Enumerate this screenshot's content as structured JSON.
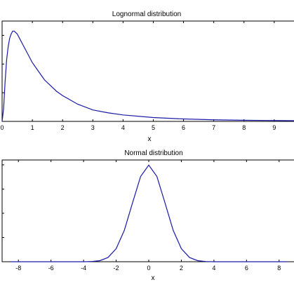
{
  "chart_data": [
    {
      "type": "line",
      "title": "Lognormal distribution",
      "xlabel": "x",
      "ylabel": "",
      "xlim": [
        0,
        9.7
      ],
      "ylim": [
        0,
        0.7
      ],
      "xticks": [
        "0",
        "1",
        "2",
        "3",
        "4",
        "5",
        "6",
        "7",
        "8",
        "9"
      ],
      "line_color": "#1a1aa8",
      "grid": false,
      "series": [
        {
          "x": [
            0,
            0.05,
            0.1,
            0.15,
            0.2,
            0.25,
            0.3,
            0.35,
            0.4,
            0.5,
            0.6,
            0.7,
            0.8,
            1.0,
            1.2,
            1.4,
            1.6,
            1.8,
            2.0,
            2.5,
            3.0,
            3.5,
            4.0,
            5.0,
            6.0,
            7.0,
            8.0,
            9.0,
            9.7
          ],
          "y": [
            0,
            0.09,
            0.28,
            0.43,
            0.52,
            0.58,
            0.61,
            0.63,
            0.63,
            0.61,
            0.57,
            0.53,
            0.49,
            0.41,
            0.35,
            0.29,
            0.25,
            0.21,
            0.18,
            0.12,
            0.08,
            0.06,
            0.045,
            0.027,
            0.017,
            0.011,
            0.008,
            0.006,
            0.005
          ]
        }
      ]
    },
    {
      "type": "line",
      "title": "Normal distribution",
      "xlabel": "x",
      "ylabel": "",
      "xlim": [
        -9,
        9
      ],
      "ylim": [
        0,
        0.42
      ],
      "xticks": [
        "-8",
        "-6",
        "-4",
        "-2",
        "0",
        "2",
        "4",
        "6",
        "8"
      ],
      "line_color": "#1a1aa8",
      "grid": false,
      "series": [
        {
          "x": [
            -8.5,
            -6,
            -4,
            -3.5,
            -3,
            -2.5,
            -2,
            -1.5,
            -1,
            -0.5,
            0,
            0.5,
            1,
            1.5,
            2,
            2.5,
            3,
            3.5,
            4,
            6,
            8.5
          ],
          "y": [
            0,
            0,
            0.0001,
            0.0009,
            0.0044,
            0.0175,
            0.054,
            0.1295,
            0.242,
            0.352,
            0.399,
            0.352,
            0.242,
            0.1295,
            0.054,
            0.0175,
            0.0044,
            0.0009,
            0.0001,
            0,
            0
          ]
        }
      ]
    }
  ]
}
